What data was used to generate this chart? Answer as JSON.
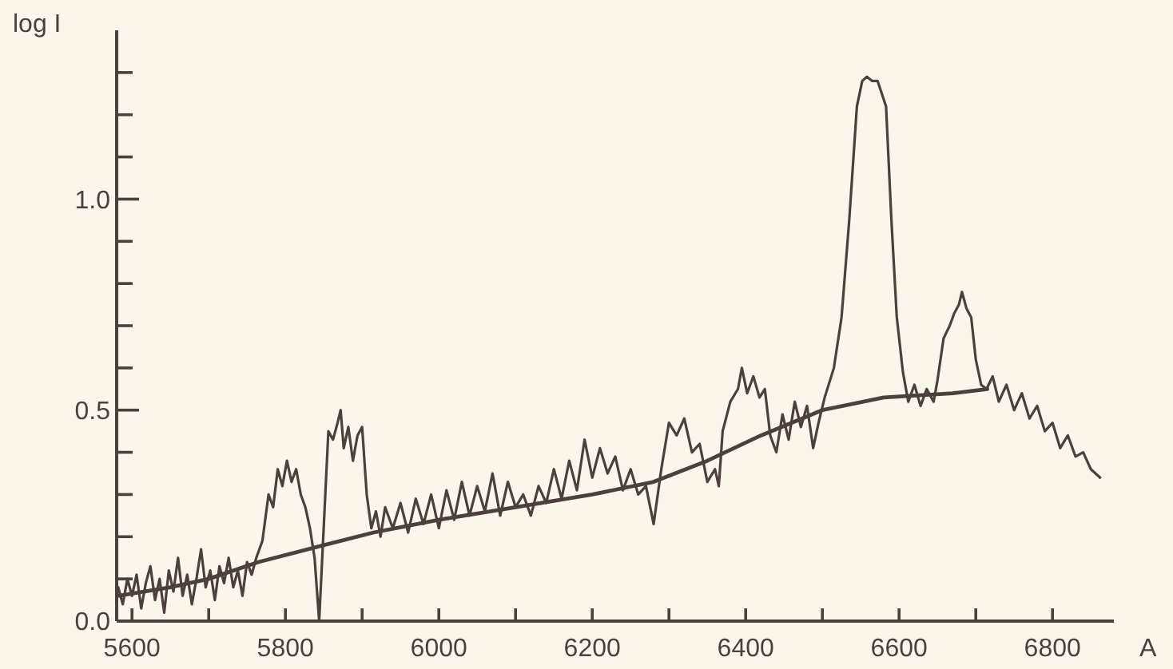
{
  "chart_data": {
    "type": "line",
    "xlabel": "A",
    "ylabel": "log I",
    "xlim": [
      5580,
      6880
    ],
    "ylim": [
      0,
      1.4
    ],
    "xticks": [
      5600,
      {
        "value": 5700,
        "label": null
      },
      5800,
      {
        "value": 5900,
        "label": null
      },
      6000,
      {
        "value": 6100,
        "label": null
      },
      6200,
      {
        "value": 6300,
        "label": null
      },
      6400,
      {
        "value": 6500,
        "label": null
      },
      6600,
      {
        "value": 6700,
        "label": null
      },
      6800
    ],
    "yticks": [
      {
        "value": 0,
        "label": "0.0"
      },
      {
        "value": 0.1,
        "label": null
      },
      {
        "value": 0.2,
        "label": null
      },
      {
        "value": 0.3,
        "label": null
      },
      {
        "value": 0.4,
        "label": null
      },
      {
        "value": 0.5,
        "label": "0.5"
      },
      {
        "value": 0.6,
        "label": null
      },
      {
        "value": 0.7,
        "label": null
      },
      {
        "value": 0.8,
        "label": null
      },
      {
        "value": 0.9,
        "label": null
      },
      {
        "value": 1.0,
        "label": "1.0"
      },
      {
        "value": 1.1,
        "label": null
      },
      {
        "value": 1.2,
        "label": null
      },
      {
        "value": 1.3,
        "label": null
      }
    ],
    "series": [
      {
        "color": "#4b403c",
        "x": [
          5582,
          5588,
          5594,
          5600,
          5606,
          5612,
          5618,
          5624,
          5630,
          5636,
          5642,
          5648,
          5654,
          5660,
          5666,
          5672,
          5678,
          5684,
          5690,
          5696,
          5702,
          5708,
          5714,
          5720,
          5726,
          5732,
          5738,
          5744,
          5750,
          5756,
          5762,
          5770,
          5778,
          5784,
          5790,
          5796,
          5802,
          5808,
          5814,
          5820,
          5826,
          5832,
          5838,
          5844,
          5852,
          5856,
          5862,
          5868,
          5872,
          5876,
          5882,
          5888,
          5894,
          5900,
          5906,
          5912,
          5918,
          5924,
          5930,
          5940,
          5950,
          5960,
          5970,
          5980,
          5990,
          6000,
          6010,
          6020,
          6030,
          6040,
          6050,
          6060,
          6070,
          6080,
          6090,
          6100,
          6110,
          6120,
          6130,
          6140,
          6150,
          6160,
          6170,
          6180,
          6190,
          6200,
          6210,
          6220,
          6230,
          6240,
          6250,
          6260,
          6270,
          6280,
          6290,
          6300,
          6310,
          6320,
          6330,
          6340,
          6350,
          6360,
          6365,
          6370,
          6380,
          6390,
          6395,
          6402,
          6410,
          6418,
          6425,
          6432,
          6440,
          6448,
          6456,
          6464,
          6472,
          6480,
          6488,
          6495,
          6503,
          6515,
          6525,
          6535,
          6545,
          6552,
          6558,
          6565,
          6572,
          6583,
          6590,
          6597,
          6605,
          6612,
          6620,
          6628,
          6636,
          6645,
          6650,
          6658,
          6666,
          6672,
          6678,
          6682,
          6688,
          6694,
          6700,
          6707,
          6714,
          6722,
          6730,
          6740,
          6750,
          6760,
          6770,
          6780,
          6790,
          6800,
          6810,
          6820,
          6830,
          6840,
          6850,
          6862
        ],
        "values": [
          0.08,
          0.04,
          0.1,
          0.06,
          0.11,
          0.03,
          0.09,
          0.13,
          0.05,
          0.1,
          0.02,
          0.12,
          0.07,
          0.15,
          0.06,
          0.11,
          0.04,
          0.1,
          0.17,
          0.08,
          0.12,
          0.05,
          0.13,
          0.09,
          0.15,
          0.08,
          0.12,
          0.06,
          0.14,
          0.11,
          0.15,
          0.19,
          0.3,
          0.27,
          0.36,
          0.32,
          0.38,
          0.33,
          0.36,
          0.3,
          0.27,
          0.22,
          0.15,
          0.0,
          0.3,
          0.45,
          0.43,
          0.47,
          0.5,
          0.41,
          0.46,
          0.38,
          0.44,
          0.46,
          0.3,
          0.22,
          0.26,
          0.2,
          0.27,
          0.22,
          0.28,
          0.21,
          0.29,
          0.23,
          0.3,
          0.22,
          0.31,
          0.24,
          0.33,
          0.25,
          0.32,
          0.26,
          0.35,
          0.25,
          0.33,
          0.27,
          0.3,
          0.25,
          0.32,
          0.28,
          0.36,
          0.29,
          0.38,
          0.31,
          0.43,
          0.34,
          0.41,
          0.35,
          0.39,
          0.31,
          0.36,
          0.3,
          0.32,
          0.23,
          0.36,
          0.47,
          0.44,
          0.48,
          0.4,
          0.42,
          0.33,
          0.36,
          0.32,
          0.45,
          0.52,
          0.55,
          0.6,
          0.54,
          0.58,
          0.53,
          0.55,
          0.44,
          0.4,
          0.49,
          0.43,
          0.52,
          0.46,
          0.51,
          0.41,
          0.47,
          0.53,
          0.6,
          0.72,
          0.95,
          1.22,
          1.28,
          1.29,
          1.28,
          1.28,
          1.22,
          0.95,
          0.72,
          0.59,
          0.52,
          0.56,
          0.51,
          0.55,
          0.52,
          0.57,
          0.67,
          0.7,
          0.73,
          0.75,
          0.78,
          0.74,
          0.72,
          0.62,
          0.56,
          0.55,
          0.58,
          0.52,
          0.56,
          0.5,
          0.54,
          0.48,
          0.51,
          0.45,
          0.47,
          0.41,
          0.44,
          0.39,
          0.4,
          0.36,
          0.34
        ]
      },
      {
        "color": "#4b403c",
        "x": [
          5582,
          5650,
          5700,
          5765,
          5850,
          5915,
          6000,
          6100,
          6200,
          6280,
          6350,
          6420,
          6500,
          6580,
          6670,
          6715
        ],
        "values": [
          0.06,
          0.08,
          0.1,
          0.14,
          0.18,
          0.21,
          0.24,
          0.27,
          0.3,
          0.33,
          0.38,
          0.44,
          0.5,
          0.53,
          0.54,
          0.55
        ]
      }
    ]
  }
}
